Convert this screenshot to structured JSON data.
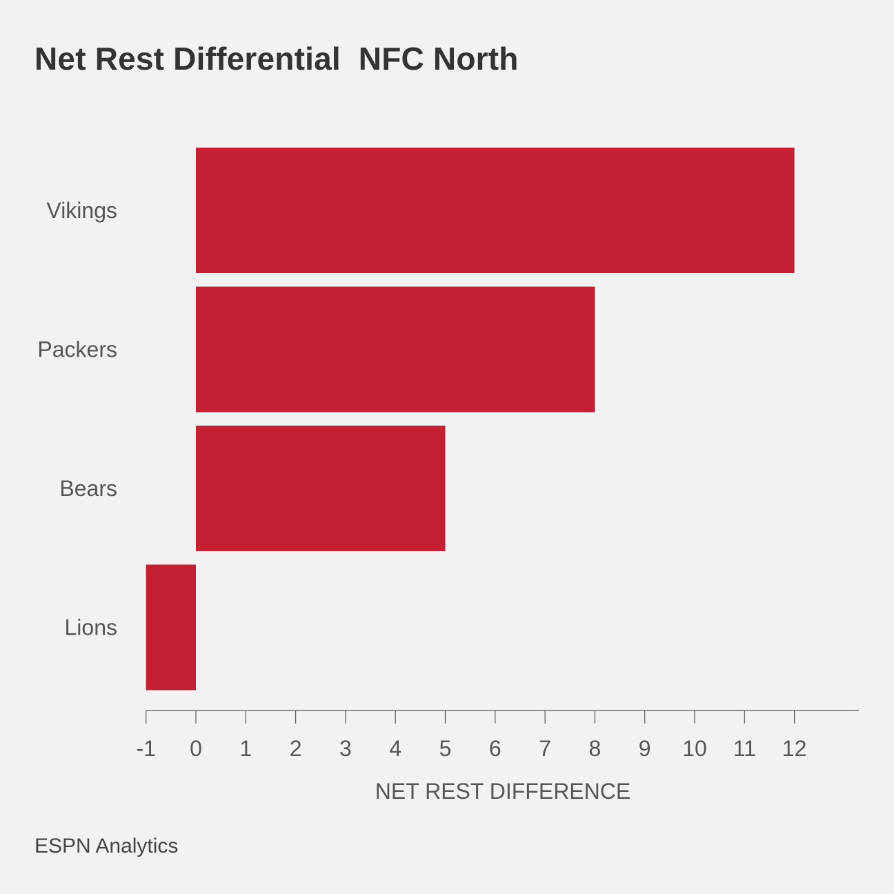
{
  "title": "Net Rest Differential  NFC North",
  "footer": "ESPN Analytics",
  "colors": {
    "background": "#f2f2f2",
    "bar": "#c41f33",
    "axis": "#555555",
    "text": "#555555",
    "title": "#333333"
  },
  "chart_data": {
    "type": "bar",
    "orientation": "horizontal",
    "categories": [
      "Vikings",
      "Packers",
      "Bears",
      "Lions"
    ],
    "values": [
      12,
      8,
      5,
      -1
    ],
    "xlabel": "NET REST DIFFERENCE",
    "ylabel": "",
    "xlim": [
      -1,
      13.3
    ],
    "xticks": [
      -1,
      0,
      1,
      2,
      3,
      4,
      5,
      6,
      7,
      8,
      9,
      10,
      11,
      12
    ],
    "grid": false,
    "legend": "none"
  }
}
